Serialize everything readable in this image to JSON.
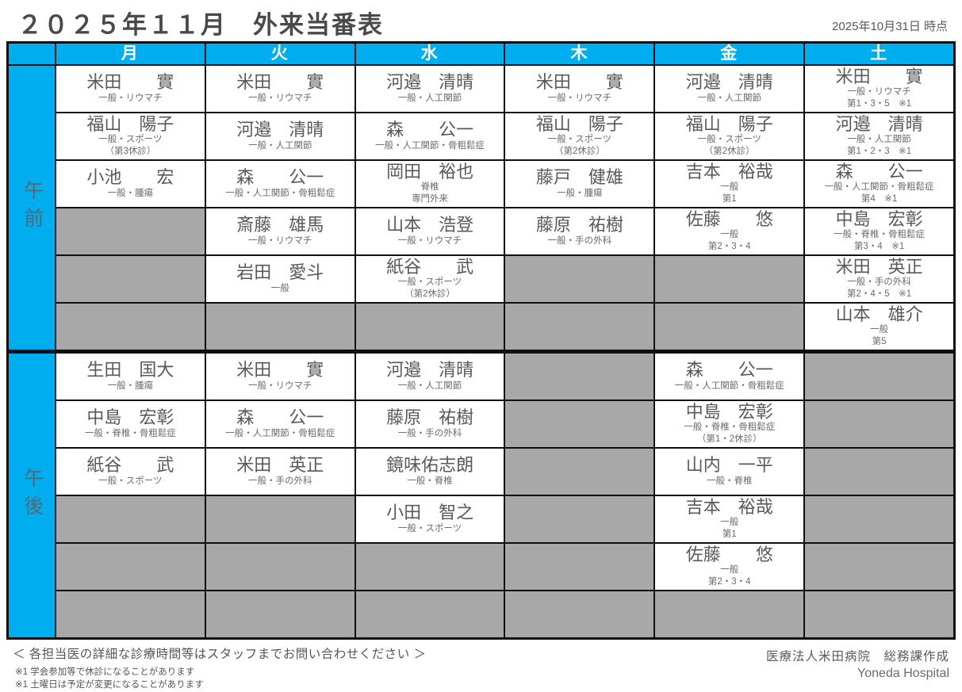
{
  "header": {
    "title": "２０２５年１１月　外来当番表",
    "as_of": "2025年10月31日 時点"
  },
  "colors": {
    "accent_cyan": "#00AEEF",
    "empty_cell_gray": "#A8A8A8",
    "border_black": "#101010",
    "text_gray": "#595959"
  },
  "table": {
    "days": [
      "月",
      "火",
      "水",
      "木",
      "金",
      "土"
    ],
    "sections": [
      {
        "label": "午前",
        "rows": [
          [
            {
              "name": "米田　　實",
              "lines": [
                "一般・リウマチ"
              ]
            },
            {
              "name": "米田　　實",
              "lines": [
                "一般・リウマチ"
              ]
            },
            {
              "name": "河邉　清晴",
              "lines": [
                "一般・人工関節"
              ]
            },
            {
              "name": "米田　　實",
              "lines": [
                "一般・リウマチ"
              ]
            },
            {
              "name": "河邉　清晴",
              "lines": [
                "一般・人工関節"
              ]
            },
            {
              "name": "米田　　實",
              "lines": [
                "一般・リウマチ",
                "第1・3・5　※1"
              ]
            }
          ],
          [
            {
              "name": "福山　陽子",
              "lines": [
                "一般・スポーツ",
                "（第3休診）"
              ]
            },
            {
              "name": "河邉　清晴",
              "lines": [
                "一般・人工関節"
              ]
            },
            {
              "name": "森　　公一",
              "lines": [
                "一般・人工関節・骨粗鬆症"
              ]
            },
            {
              "name": "福山　陽子",
              "lines": [
                "一般・スポーツ",
                "（第2休診）"
              ]
            },
            {
              "name": "福山　陽子",
              "lines": [
                "一般・スポーツ",
                "（第2休診）"
              ]
            },
            {
              "name": "河邉　清晴",
              "lines": [
                "一般・人工関節",
                "第1・2・3　※1"
              ]
            }
          ],
          [
            {
              "name": "小池　　宏",
              "lines": [
                "一般・腫瘍"
              ]
            },
            {
              "name": "森　　公一",
              "lines": [
                "一般・人工関節・骨粗鬆症"
              ]
            },
            {
              "name": "岡田　裕也",
              "lines": [
                "脊椎",
                "専門外来"
              ]
            },
            {
              "name": "藤戸　健雄",
              "lines": [
                "一般・腫瘍"
              ]
            },
            {
              "name": "吉本　裕哉",
              "lines": [
                "一般",
                "第1"
              ]
            },
            {
              "name": "森　　公一",
              "lines": [
                "一般・人工関節・骨粗鬆症",
                "第4　※1"
              ]
            }
          ],
          [
            null,
            {
              "name": "斎藤　雄馬",
              "lines": [
                "一般・リウマチ"
              ]
            },
            {
              "name": "山本　浩登",
              "lines": [
                "一般・リウマチ"
              ]
            },
            {
              "name": "藤原　祐樹",
              "lines": [
                "一般・手の外科"
              ]
            },
            {
              "name": "佐藤　　悠",
              "lines": [
                "一般",
                "第2・3・4"
              ]
            },
            {
              "name": "中島　宏彰",
              "lines": [
                "一般・脊椎・骨粗鬆症",
                "第3・4　※1"
              ]
            }
          ],
          [
            null,
            {
              "name": "岩田　愛斗",
              "lines": [
                "一般"
              ]
            },
            {
              "name": "紙谷　　武",
              "lines": [
                "一般・スポーツ",
                "（第2休診）"
              ]
            },
            null,
            null,
            {
              "name": "米田　英正",
              "lines": [
                "一般・手の外科",
                "第2・4・5　※1"
              ]
            }
          ],
          [
            null,
            null,
            null,
            null,
            null,
            {
              "name": "山本　雄介",
              "lines": [
                "一般",
                "第5"
              ]
            }
          ]
        ]
      },
      {
        "label": "午後",
        "rows": [
          [
            {
              "name": "生田　国大",
              "lines": [
                "一般・腫瘍"
              ]
            },
            {
              "name": "米田　　實",
              "lines": [
                "一般・リウマチ"
              ]
            },
            {
              "name": "河邉　清晴",
              "lines": [
                "一般・人工関節"
              ]
            },
            null,
            {
              "name": "森　　公一",
              "lines": [
                "一般・人工関節・骨粗鬆症"
              ]
            },
            null
          ],
          [
            {
              "name": "中島　宏彰",
              "lines": [
                "一般・脊椎・骨粗鬆症"
              ]
            },
            {
              "name": "森　　公一",
              "lines": [
                "一般・人工関節・骨粗鬆症"
              ]
            },
            {
              "name": "藤原　祐樹",
              "lines": [
                "一般・手の外科"
              ]
            },
            null,
            {
              "name": "中島　宏彰",
              "lines": [
                "一般・脊椎・骨粗鬆症",
                "（第1・2休診）"
              ]
            },
            null
          ],
          [
            {
              "name": "紙谷　　武",
              "lines": [
                "一般・スポーツ"
              ]
            },
            {
              "name": "米田　英正",
              "lines": [
                "一般・手の外科"
              ]
            },
            {
              "name": "鏡味佑志朗",
              "lines": [
                "一般・脊椎"
              ]
            },
            null,
            {
              "name": "山内　一平",
              "lines": [
                "一般・脊椎"
              ]
            },
            null
          ],
          [
            null,
            null,
            {
              "name": "小田　智之",
              "lines": [
                "一般・スポーツ"
              ]
            },
            null,
            {
              "name": "吉本　裕哉",
              "lines": [
                "一般",
                "第1"
              ]
            },
            null
          ],
          [
            null,
            null,
            null,
            null,
            {
              "name": "佐藤　　悠",
              "lines": [
                "一般",
                "第2・3・4"
              ]
            },
            null
          ],
          [
            null,
            null,
            null,
            null,
            null,
            null
          ]
        ]
      }
    ]
  },
  "footer": {
    "note": "＜ 各担当医の詳細な診療時間等はスタッフまでお問い合わせください ＞",
    "footnote1": "※1 学会参加等で休診になることがあります",
    "footnote2": "※1 土曜日は予定が変更になることがあります",
    "credit": "医療法人米田病院　総務課作成",
    "credit_en": "Yoneda Hospital"
  }
}
